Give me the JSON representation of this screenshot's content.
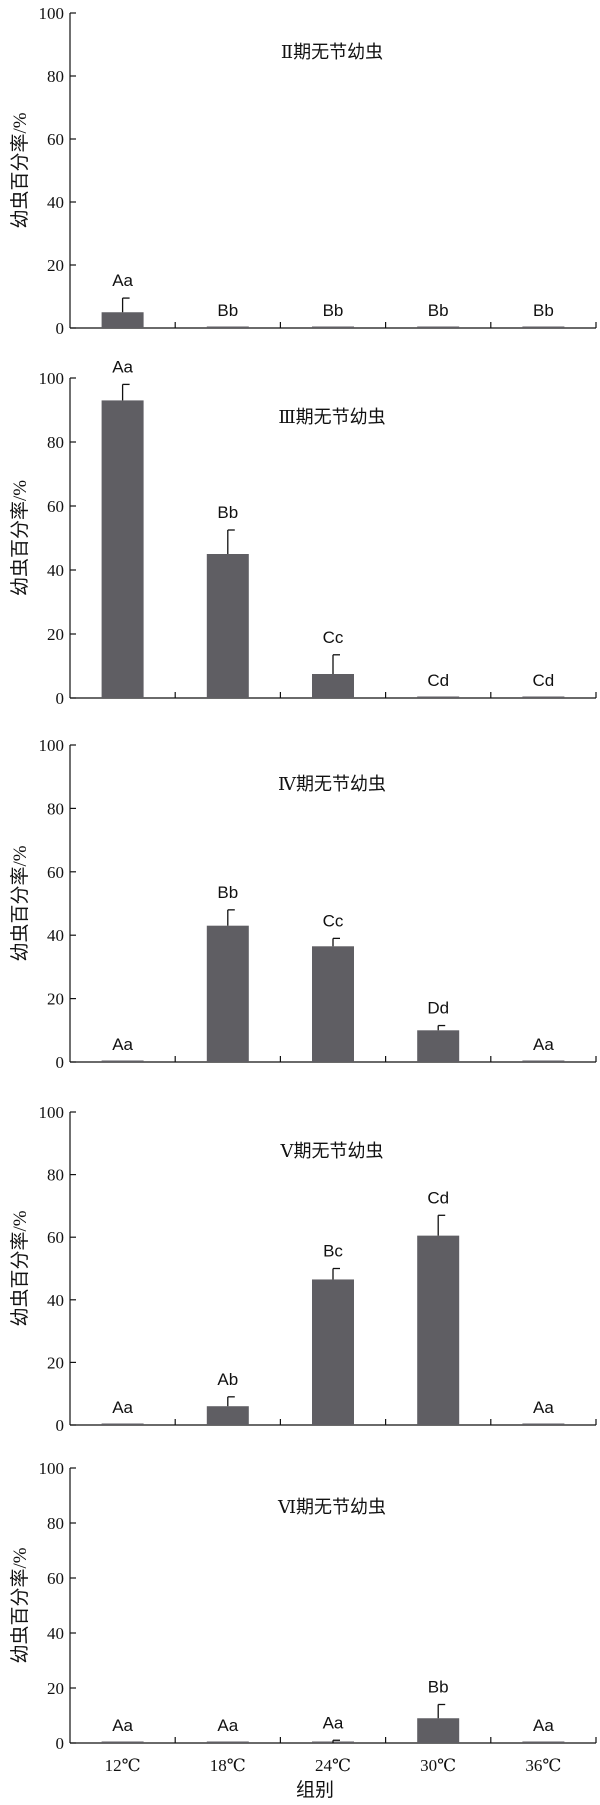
{
  "bar_color": "#5f5e63",
  "xlabel": "组别",
  "chart_data": [
    {
      "type": "bar",
      "title": "Ⅱ期无节幼虫",
      "ylabel": "幼虫百分率/%",
      "ylim": [
        0,
        100
      ],
      "yticks": [
        0,
        20,
        40,
        60,
        80,
        100
      ],
      "categories": [
        "12℃",
        "18℃",
        "24℃",
        "30℃",
        "36℃"
      ],
      "values": [
        5,
        0,
        0,
        0,
        0
      ],
      "errors": [
        4.5,
        0,
        0,
        0,
        0
      ],
      "labels": [
        "Aa",
        "Bb",
        "Bb",
        "Bb",
        "Bb"
      ]
    },
    {
      "type": "bar",
      "title": "Ⅲ期无节幼虫",
      "ylabel": "幼虫百分率/%",
      "ylim": [
        0,
        100
      ],
      "yticks": [
        0,
        20,
        40,
        60,
        80,
        100
      ],
      "categories": [
        "12℃",
        "18℃",
        "24℃",
        "30℃",
        "36℃"
      ],
      "values": [
        93,
        45,
        7.5,
        0,
        0
      ],
      "errors": [
        5,
        7.5,
        6,
        0,
        0
      ],
      "labels": [
        "Aa",
        "Bb",
        "Cc",
        "Cd",
        "Cd"
      ]
    },
    {
      "type": "bar",
      "title": "Ⅳ期无节幼虫",
      "ylabel": "幼虫百分率/%",
      "ylim": [
        0,
        100
      ],
      "yticks": [
        0,
        20,
        40,
        60,
        80,
        100
      ],
      "categories": [
        "12℃",
        "18℃",
        "24℃",
        "30℃",
        "36℃"
      ],
      "values": [
        0,
        43,
        36.5,
        10,
        0
      ],
      "errors": [
        0,
        5,
        2.5,
        1.5,
        0
      ],
      "labels": [
        "Aa",
        "Bb",
        "Cc",
        "Dd",
        "Aa"
      ]
    },
    {
      "type": "bar",
      "title": "Ⅴ期无节幼虫",
      "ylabel": "幼虫百分率/%",
      "ylim": [
        0,
        100
      ],
      "yticks": [
        0,
        20,
        40,
        60,
        80,
        100
      ],
      "categories": [
        "12℃",
        "18℃",
        "24℃",
        "30℃",
        "36℃"
      ],
      "values": [
        0,
        6,
        46.5,
        60.5,
        0
      ],
      "errors": [
        0,
        3,
        3.5,
        6.5,
        0
      ],
      "labels": [
        "Aa",
        "Ab",
        "Bc",
        "Cd",
        "Aa"
      ]
    },
    {
      "type": "bar",
      "title": "Ⅵ期无节幼虫",
      "ylabel": "幼虫百分率/%",
      "ylim": [
        0,
        100
      ],
      "yticks": [
        0,
        20,
        40,
        60,
        80,
        100
      ],
      "categories": [
        "12℃",
        "18℃",
        "24℃",
        "30℃",
        "36℃"
      ],
      "values": [
        0,
        0,
        0,
        9,
        0
      ],
      "errors": [
        0,
        0,
        1,
        5,
        0
      ],
      "labels": [
        "Aa",
        "Aa",
        "Aa",
        "Bb",
        "Aa"
      ]
    }
  ]
}
